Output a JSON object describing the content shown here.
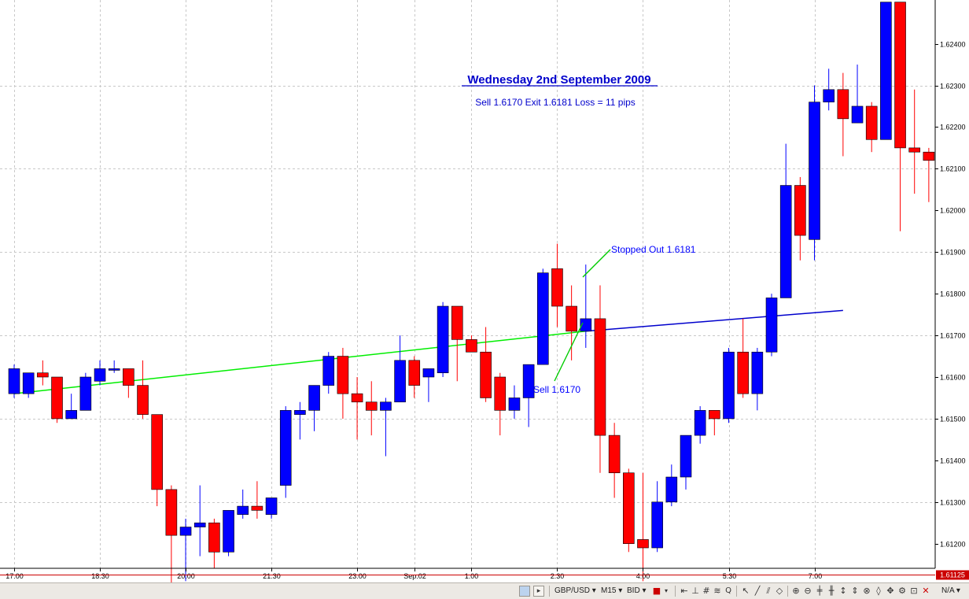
{
  "chart_data": {
    "type": "candlestick",
    "title": "Wednesday 2nd September 2009",
    "subtitle": "Sell 1.6170 Exit 1.6181 Loss = 11 pips",
    "symbol": "GBP/USD",
    "timeframe": "M15",
    "price_type": "BID",
    "ylim": [
      1.61105,
      1.62505
    ],
    "y_ticks": [
      1.624,
      1.623,
      1.622,
      1.621,
      1.62,
      1.619,
      1.618,
      1.617,
      1.616,
      1.615,
      1.614,
      1.613,
      1.612
    ],
    "y_tick_labels": [
      "1.62400",
      "1.62300",
      "1.62200",
      "1.62100",
      "1.62000",
      "1.61900",
      "1.61800",
      "1.61700",
      "1.61600",
      "1.61500",
      "1.61400",
      "1.61300",
      "1.61200"
    ],
    "x_ticks": [
      {
        "bar": 0,
        "label": "17:00"
      },
      {
        "bar": 6,
        "label": "18:30"
      },
      {
        "bar": 12,
        "label": "20:00"
      },
      {
        "bar": 18,
        "label": "21:30"
      },
      {
        "bar": 24,
        "label": "23:00"
      },
      {
        "bar": 28,
        "label": "Sep.02"
      },
      {
        "bar": 32,
        "label": "1:00"
      },
      {
        "bar": 38,
        "label": "2:30"
      },
      {
        "bar": 44,
        "label": "4:00"
      },
      {
        "bar": 50,
        "label": "5:30"
      },
      {
        "bar": 56,
        "label": "7:00"
      }
    ],
    "grid": true,
    "current_price": "1.61125",
    "current_price_value": 1.61125,
    "up_color": "#0000ff",
    "down_color": "#ff0000",
    "candles": [
      {
        "o": 1.6156,
        "h": 1.6163,
        "l": 1.6155,
        "c": 1.6162
      },
      {
        "o": 1.6156,
        "h": 1.6161,
        "l": 1.6155,
        "c": 1.6161
      },
      {
        "o": 1.6161,
        "h": 1.6164,
        "l": 1.6158,
        "c": 1.616
      },
      {
        "o": 1.616,
        "h": 1.616,
        "l": 1.6149,
        "c": 1.615
      },
      {
        "o": 1.615,
        "h": 1.6156,
        "l": 1.615,
        "c": 1.6152
      },
      {
        "o": 1.6152,
        "h": 1.6161,
        "l": 1.6152,
        "c": 1.616
      },
      {
        "o": 1.6159,
        "h": 1.6164,
        "l": 1.6158,
        "c": 1.6162
      },
      {
        "o": 1.6162,
        "h": 1.6164,
        "l": 1.6161,
        "c": 1.6162
      },
      {
        "o": 1.6162,
        "h": 1.6162,
        "l": 1.6155,
        "c": 1.6158
      },
      {
        "o": 1.6158,
        "h": 1.6164,
        "l": 1.615,
        "c": 1.6151
      },
      {
        "o": 1.6151,
        "h": 1.6151,
        "l": 1.6129,
        "c": 1.6133
      },
      {
        "o": 1.6133,
        "h": 1.6134,
        "l": 1.611,
        "c": 1.6122
      },
      {
        "o": 1.6122,
        "h": 1.6126,
        "l": 1.6111,
        "c": 1.6124
      },
      {
        "o": 1.6124,
        "h": 1.6134,
        "l": 1.6117,
        "c": 1.6125
      },
      {
        "o": 1.6125,
        "h": 1.6126,
        "l": 1.6114,
        "c": 1.6118
      },
      {
        "o": 1.6118,
        "h": 1.6127,
        "l": 1.6117,
        "c": 1.6128
      },
      {
        "o": 1.6127,
        "h": 1.6133,
        "l": 1.6126,
        "c": 1.6129
      },
      {
        "o": 1.6129,
        "h": 1.6135,
        "l": 1.6126,
        "c": 1.6128
      },
      {
        "o": 1.6127,
        "h": 1.6131,
        "l": 1.6126,
        "c": 1.6131
      },
      {
        "o": 1.6134,
        "h": 1.6153,
        "l": 1.6131,
        "c": 1.6152
      },
      {
        "o": 1.6151,
        "h": 1.6154,
        "l": 1.6145,
        "c": 1.6152
      },
      {
        "o": 1.6152,
        "h": 1.6158,
        "l": 1.6147,
        "c": 1.6158
      },
      {
        "o": 1.6158,
        "h": 1.6166,
        "l": 1.6156,
        "c": 1.6165
      },
      {
        "o": 1.6165,
        "h": 1.6167,
        "l": 1.615,
        "c": 1.6156
      },
      {
        "o": 1.6156,
        "h": 1.616,
        "l": 1.6145,
        "c": 1.6154
      },
      {
        "o": 1.6154,
        "h": 1.6159,
        "l": 1.6146,
        "c": 1.6152
      },
      {
        "o": 1.6152,
        "h": 1.6155,
        "l": 1.6141,
        "c": 1.6154
      },
      {
        "o": 1.6154,
        "h": 1.617,
        "l": 1.6154,
        "c": 1.6164
      },
      {
        "o": 1.6164,
        "h": 1.6165,
        "l": 1.6155,
        "c": 1.6158
      },
      {
        "o": 1.616,
        "h": 1.6162,
        "l": 1.6154,
        "c": 1.6162
      },
      {
        "o": 1.6161,
        "h": 1.6178,
        "l": 1.616,
        "c": 1.6177
      },
      {
        "o": 1.6177,
        "h": 1.6177,
        "l": 1.6159,
        "c": 1.6169
      },
      {
        "o": 1.6169,
        "h": 1.617,
        "l": 1.6166,
        "c": 1.6166
      },
      {
        "o": 1.6166,
        "h": 1.6172,
        "l": 1.6154,
        "c": 1.6155
      },
      {
        "o": 1.616,
        "h": 1.6161,
        "l": 1.6146,
        "c": 1.6152
      },
      {
        "o": 1.6152,
        "h": 1.6158,
        "l": 1.615,
        "c": 1.6155
      },
      {
        "o": 1.6155,
        "h": 1.6163,
        "l": 1.6148,
        "c": 1.6163
      },
      {
        "o": 1.6163,
        "h": 1.6186,
        "l": 1.6163,
        "c": 1.6185
      },
      {
        "o": 1.6186,
        "h": 1.6192,
        "l": 1.6172,
        "c": 1.6177
      },
      {
        "o": 1.6177,
        "h": 1.6182,
        "l": 1.6164,
        "c": 1.6171
      },
      {
        "o": 1.6171,
        "h": 1.6187,
        "l": 1.6167,
        "c": 1.6174
      },
      {
        "o": 1.6174,
        "h": 1.6182,
        "l": 1.6137,
        "c": 1.6146
      },
      {
        "o": 1.6146,
        "h": 1.6149,
        "l": 1.6131,
        "c": 1.6137
      },
      {
        "o": 1.6137,
        "h": 1.6138,
        "l": 1.6118,
        "c": 1.612
      },
      {
        "o": 1.6121,
        "h": 1.6137,
        "l": 1.6111,
        "c": 1.6119
      },
      {
        "o": 1.6119,
        "h": 1.6135,
        "l": 1.6118,
        "c": 1.613
      },
      {
        "o": 1.613,
        "h": 1.6139,
        "l": 1.6129,
        "c": 1.6136
      },
      {
        "o": 1.6136,
        "h": 1.6146,
        "l": 1.6133,
        "c": 1.6146
      },
      {
        "o": 1.6146,
        "h": 1.6153,
        "l": 1.6144,
        "c": 1.6152
      },
      {
        "o": 1.6152,
        "h": 1.6152,
        "l": 1.6146,
        "c": 1.615
      },
      {
        "o": 1.615,
        "h": 1.6167,
        "l": 1.6149,
        "c": 1.6166
      },
      {
        "o": 1.6166,
        "h": 1.6174,
        "l": 1.6155,
        "c": 1.6156
      },
      {
        "o": 1.6156,
        "h": 1.6167,
        "l": 1.6152,
        "c": 1.6166
      },
      {
        "o": 1.6166,
        "h": 1.618,
        "l": 1.6165,
        "c": 1.6179
      },
      {
        "o": 1.6179,
        "h": 1.6216,
        "l": 1.6179,
        "c": 1.6206
      },
      {
        "o": 1.6206,
        "h": 1.6208,
        "l": 1.6188,
        "c": 1.6194
      },
      {
        "o": 1.6193,
        "h": 1.623,
        "l": 1.6188,
        "c": 1.6226
      },
      {
        "o": 1.6226,
        "h": 1.6234,
        "l": 1.6224,
        "c": 1.6229
      },
      {
        "o": 1.6229,
        "h": 1.6233,
        "l": 1.6213,
        "c": 1.6222
      },
      {
        "o": 1.6221,
        "h": 1.6235,
        "l": 1.6221,
        "c": 1.6225
      },
      {
        "o": 1.6225,
        "h": 1.6226,
        "l": 1.6214,
        "c": 1.6217
      },
      {
        "o": 1.6217,
        "h": 1.625,
        "l": 1.6217,
        "c": 1.625
      },
      {
        "o": 1.625,
        "h": 1.625,
        "l": 1.6195,
        "c": 1.6215
      },
      {
        "o": 1.6215,
        "h": 1.6229,
        "l": 1.6204,
        "c": 1.6214
      },
      {
        "o": 1.6214,
        "h": 1.6215,
        "l": 1.6202,
        "c": 1.6212
      }
    ],
    "trendlines": [
      {
        "color": "#00ee00",
        "from": {
          "bar": 0,
          "price": 1.6156
        },
        "to": {
          "bar": 40,
          "price": 1.6171
        }
      },
      {
        "color": "#0000cc",
        "from": {
          "bar": 40,
          "price": 1.6171
        },
        "to": {
          "bar": 58,
          "price": 1.6176
        }
      }
    ],
    "annotations": [
      {
        "text": "Stopped Out 1.6181",
        "color": "#0000ff"
      },
      {
        "text": "Sell 1.6170",
        "color": "#0000ff"
      }
    ]
  },
  "toolbar": {
    "symbol_label": "GBP/USD",
    "timeframe_label": "M15",
    "price_type_label": "BID",
    "status_label": "N/A"
  }
}
